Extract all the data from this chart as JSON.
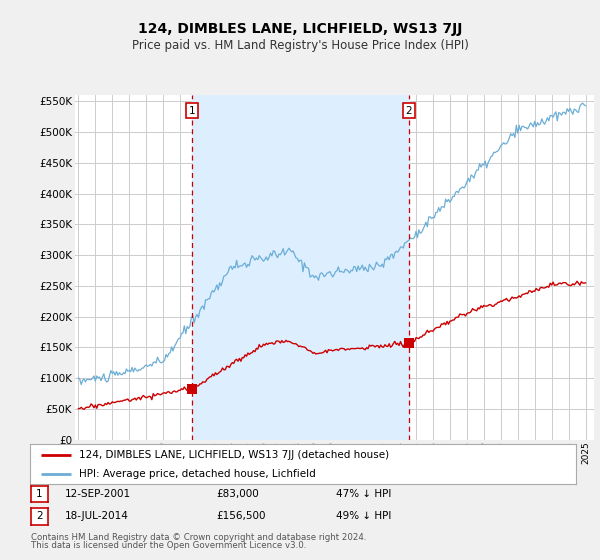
{
  "title": "124, DIMBLES LANE, LICHFIELD, WS13 7JJ",
  "subtitle": "Price paid vs. HM Land Registry's House Price Index (HPI)",
  "ylim": [
    0,
    550000
  ],
  "yticks": [
    0,
    50000,
    100000,
    150000,
    200000,
    250000,
    300000,
    350000,
    400000,
    450000,
    500000,
    550000
  ],
  "background_color": "#f0f0f0",
  "plot_bg_color": "#ffffff",
  "shade_color": "#ddeeff",
  "grid_color": "#cccccc",
  "hpi_color": "#6baed6",
  "price_color": "#cc0000",
  "vline_color": "#cc0000",
  "marker1_year": 2001.71,
  "marker2_year": 2014.54,
  "t1_price": 83000,
  "t2_price": 156500,
  "legend_label_price": "124, DIMBLES LANE, LICHFIELD, WS13 7JJ (detached house)",
  "legend_label_hpi": "HPI: Average price, detached house, Lichfield",
  "footer1": "Contains HM Land Registry data © Crown copyright and database right 2024.",
  "footer2": "This data is licensed under the Open Government Licence v3.0."
}
